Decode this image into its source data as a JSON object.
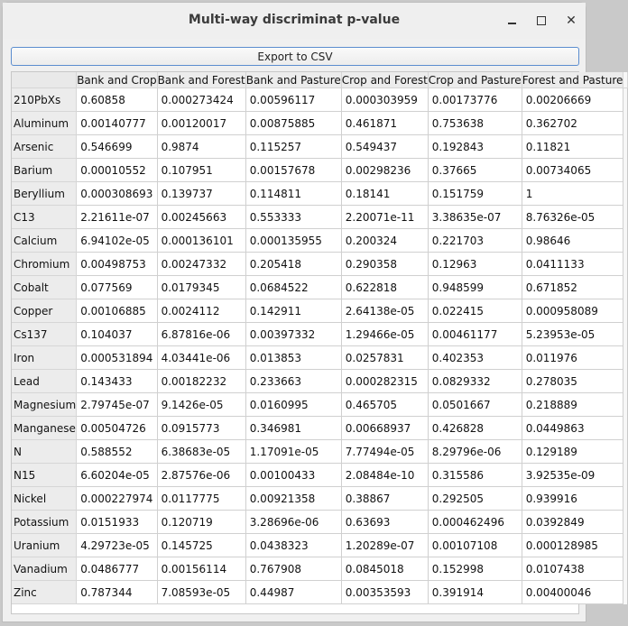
{
  "window": {
    "title": "Multi-way discriminat p-value"
  },
  "toolbar": {
    "export_label": "Export to CSV"
  },
  "table": {
    "columns": [
      "Bank and Crop",
      "Bank and Forest",
      "Bank and Pasture",
      "Crop and Forest",
      "Crop and Pasture",
      "Forest and Pasture"
    ],
    "rows": [
      {
        "label": "210PbXs",
        "values": [
          "0.60858",
          "0.000273424",
          "0.00596117",
          "0.000303959",
          "0.00173776",
          "0.00206669"
        ]
      },
      {
        "label": "Aluminum",
        "values": [
          "0.00140777",
          "0.00120017",
          "0.00875885",
          "0.461871",
          "0.753638",
          "0.362702"
        ]
      },
      {
        "label": "Arsenic",
        "values": [
          "0.546699",
          "0.9874",
          "0.115257",
          "0.549437",
          "0.192843",
          "0.11821"
        ]
      },
      {
        "label": "Barium",
        "values": [
          "0.00010552",
          "0.107951",
          "0.00157678",
          "0.00298236",
          "0.37665",
          "0.00734065"
        ]
      },
      {
        "label": "Beryllium",
        "values": [
          "0.000308693",
          "0.139737",
          "0.114811",
          "0.18141",
          "0.151759",
          "1"
        ]
      },
      {
        "label": "C13",
        "values": [
          "2.21611e-07",
          "0.00245663",
          "0.553333",
          "2.20071e-11",
          "3.38635e-07",
          "8.76326e-05"
        ]
      },
      {
        "label": "Calcium",
        "values": [
          "6.94102e-05",
          "0.000136101",
          "0.000135955",
          "0.200324",
          "0.221703",
          "0.98646"
        ]
      },
      {
        "label": "Chromium",
        "values": [
          "0.00498753",
          "0.00247332",
          "0.205418",
          "0.290358",
          "0.12963",
          "0.0411133"
        ]
      },
      {
        "label": "Cobalt",
        "values": [
          "0.077569",
          "0.0179345",
          "0.0684522",
          "0.622818",
          "0.948599",
          "0.671852"
        ]
      },
      {
        "label": "Copper",
        "values": [
          "0.00106885",
          "0.0024112",
          "0.142911",
          "2.64138e-05",
          "0.022415",
          "0.000958089"
        ]
      },
      {
        "label": "Cs137",
        "values": [
          "0.104037",
          "6.87816e-06",
          "0.00397332",
          "1.29466e-05",
          "0.00461177",
          "5.23953e-05"
        ]
      },
      {
        "label": "Iron",
        "values": [
          "0.000531894",
          "4.03441e-06",
          "0.013853",
          "0.0257831",
          "0.402353",
          "0.011976"
        ]
      },
      {
        "label": "Lead",
        "values": [
          "0.143433",
          "0.00182232",
          "0.233663",
          "0.000282315",
          "0.0829332",
          "0.278035"
        ]
      },
      {
        "label": "Magnesium",
        "values": [
          "2.79745e-07",
          "9.1426e-05",
          "0.0160995",
          "0.465705",
          "0.0501667",
          "0.218889"
        ]
      },
      {
        "label": "Manganese",
        "values": [
          "0.00504726",
          "0.0915773",
          "0.346981",
          "0.00668937",
          "0.426828",
          "0.0449863"
        ]
      },
      {
        "label": "N",
        "values": [
          "0.588552",
          "6.38683e-05",
          "1.17091e-05",
          "7.77494e-05",
          "8.29796e-06",
          "0.129189"
        ]
      },
      {
        "label": "N15",
        "values": [
          "6.60204e-05",
          "2.87576e-06",
          "0.00100433",
          "2.08484e-10",
          "0.315586",
          "3.92535e-09"
        ]
      },
      {
        "label": "Nickel",
        "values": [
          "0.000227974",
          "0.0117775",
          "0.00921358",
          "0.38867",
          "0.292505",
          "0.939916"
        ]
      },
      {
        "label": "Potassium",
        "values": [
          "0.0151933",
          "0.120719",
          "3.28696e-06",
          "0.63693",
          "0.000462496",
          "0.0392849"
        ]
      },
      {
        "label": "Uranium",
        "values": [
          "4.29723e-05",
          "0.145725",
          "0.0438323",
          "1.20289e-07",
          "0.00107108",
          "0.000128985"
        ]
      },
      {
        "label": "Vanadium",
        "values": [
          "0.0486777",
          "0.00156114",
          "0.767908",
          "0.0845018",
          "0.152998",
          "0.0107438"
        ]
      },
      {
        "label": "Zinc",
        "values": [
          "0.787344",
          "7.08593e-05",
          "0.44987",
          "0.00353593",
          "0.391914",
          "0.00400046"
        ]
      }
    ]
  }
}
